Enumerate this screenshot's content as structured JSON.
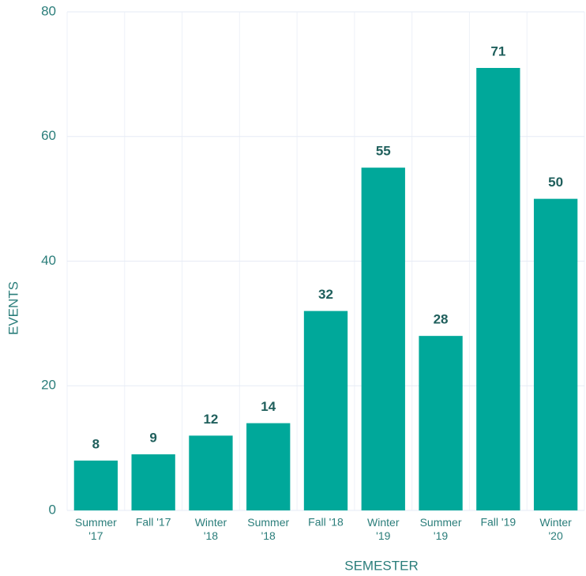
{
  "chart_data": {
    "type": "bar",
    "x_label": "SEMESTER",
    "y_label": "EVENTS",
    "categories": [
      "Summer '17",
      "Fall '17",
      "Winter '18",
      "Summer '18",
      "Fall '18",
      "Winter '19",
      "Summer '19",
      "Fall '19",
      "Winter '20"
    ],
    "values": [
      8,
      9,
      12,
      14,
      32,
      55,
      28,
      71,
      50
    ],
    "color": "#00a89a",
    "ylim": [
      0,
      80
    ],
    "yticks": [
      0,
      20,
      40,
      60,
      80
    ],
    "grid": true
  }
}
